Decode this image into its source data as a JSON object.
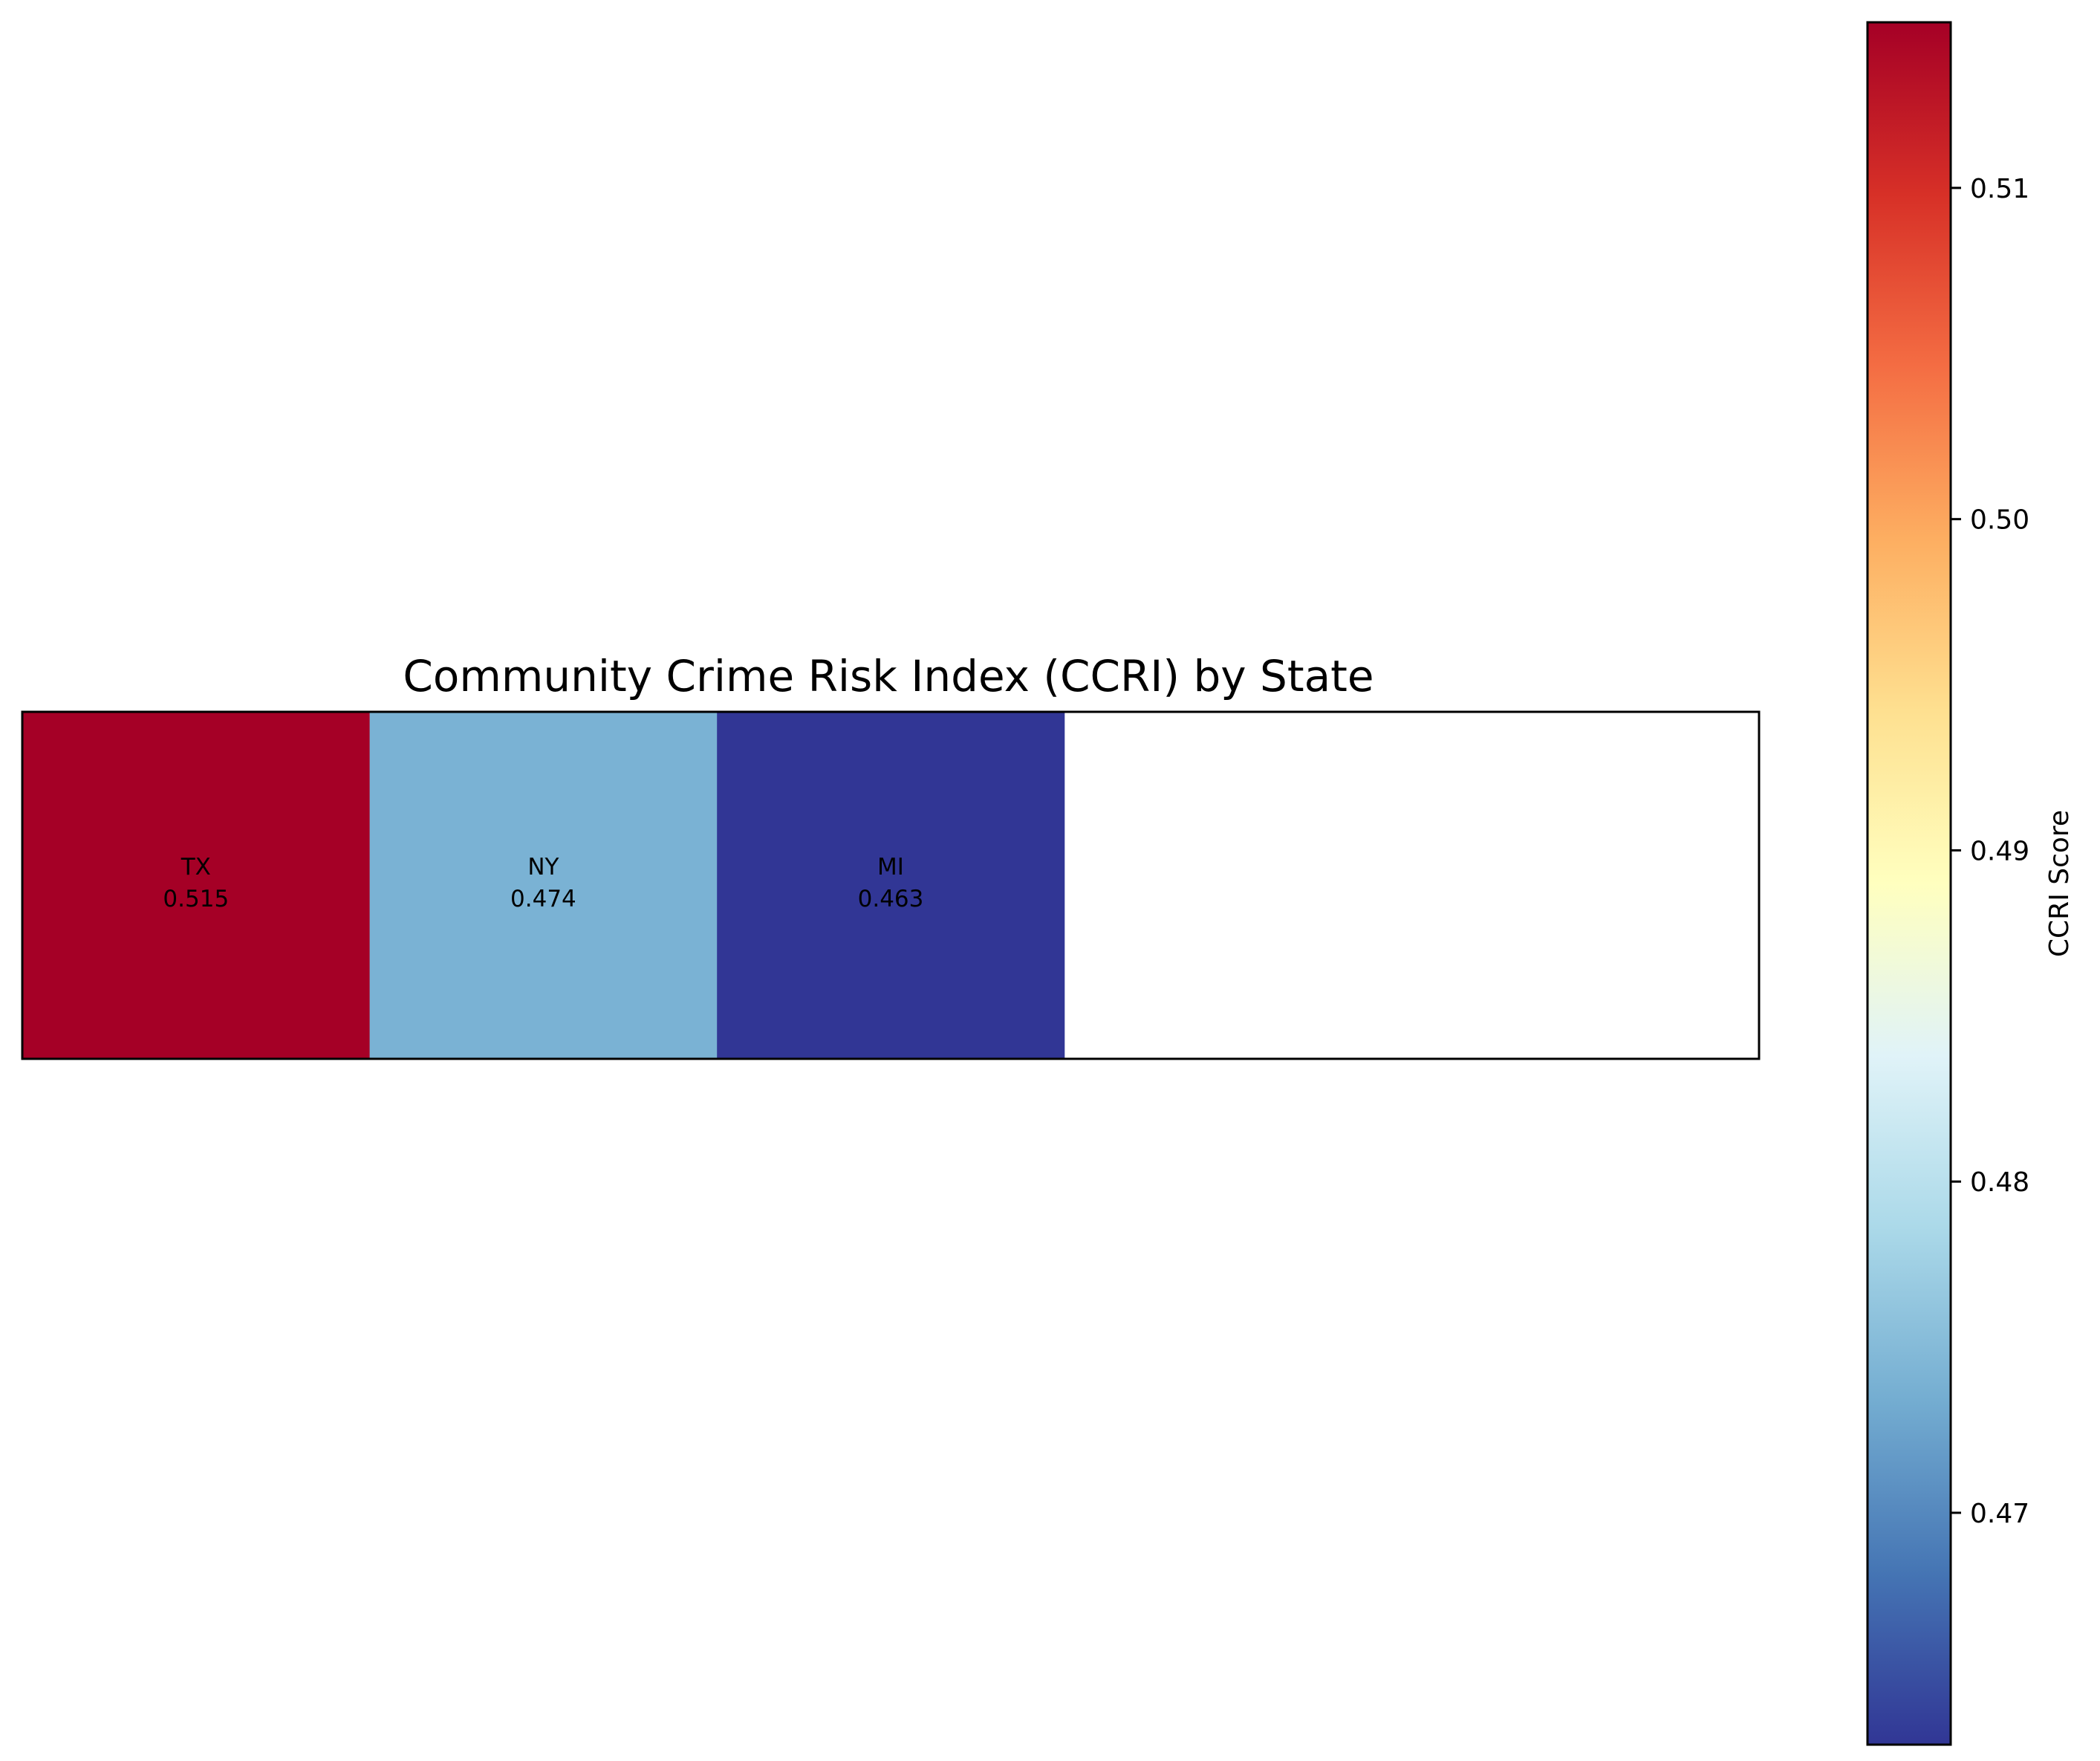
{
  "chart_data": {
    "type": "heatmap",
    "title": "Community Crime Risk Index (CCRI) by State",
    "cells": [
      {
        "label": "TX",
        "value": 0.515,
        "value_text": "0.515"
      },
      {
        "label": "NY",
        "value": 0.474,
        "value_text": "0.474"
      },
      {
        "label": "MI",
        "value": 0.463,
        "value_text": "0.463"
      }
    ],
    "grid_columns": 5,
    "colorbar": {
      "label": "CCRI Score",
      "colormap": "RdYlBu_r",
      "vmin": 0.463,
      "vmax": 0.515,
      "ticks": [
        {
          "value": 0.47,
          "text": "0.47"
        },
        {
          "value": 0.48,
          "text": "0.48"
        },
        {
          "value": 0.49,
          "text": "0.49"
        },
        {
          "value": 0.5,
          "text": "0.50"
        },
        {
          "value": 0.51,
          "text": "0.51"
        }
      ]
    },
    "colors": {
      "high": "#a50026",
      "low": "#313695",
      "empty": "#ffffff"
    }
  }
}
